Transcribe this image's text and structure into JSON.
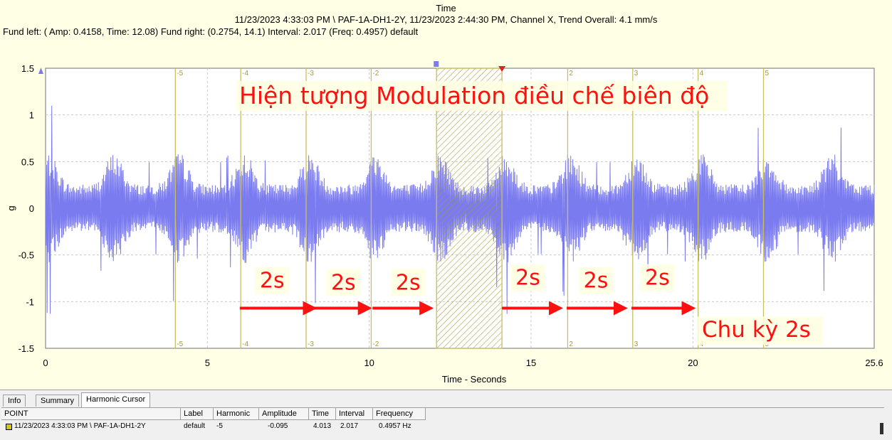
{
  "chart_data": {
    "type": "line",
    "title": "Time",
    "subtitle": "11/23/2023 4:33:03 PM \\ PAF-1A-DH1-2Y, 11/23/2023 2:44:30 PM, Channel X, Trend Overall: 4.1 mm/s",
    "info_line": "Fund left: ( Amp: 0.4158, Time: 12.08) Fund right: (0.2754, 14.1) Interval: 2.017 (Freq: 0.4957) default",
    "xlabel": "Time - Seconds",
    "ylabel": "g",
    "xlim": [
      0,
      25.6
    ],
    "ylim": [
      -1.5,
      1.5
    ],
    "x_ticks": [
      "0",
      "5",
      "10",
      "15",
      "20",
      "25.6"
    ],
    "y_ticks": [
      "1.5",
      "1",
      "0.5",
      "0",
      "-0.5",
      "-1",
      "-1.5"
    ],
    "grid": true,
    "series": [
      {
        "color": "#7b7bf0",
        "envelope_period_s": 2.017,
        "typical_peak_g": 0.6,
        "max_peak_g": 1.2
      }
    ],
    "harmonic_cursors": [
      {
        "label": "-5",
        "x": 4.01
      },
      {
        "label": "-4",
        "x": 6.03
      },
      {
        "label": "-3",
        "x": 8.05
      },
      {
        "label": "-2",
        "x": 10.06
      },
      {
        "label": "2",
        "x": 16.13
      },
      {
        "label": "3",
        "x": 18.14
      },
      {
        "label": "4",
        "x": 20.16
      },
      {
        "label": "5",
        "x": 22.18
      }
    ],
    "band": {
      "x0": 12.08,
      "x1": 14.1,
      "color": "#c8c060"
    },
    "annotations": {
      "main": "Hiện tượng Modulation điều chế biên độ",
      "cycle": "Chu kỳ 2s",
      "arrow_label": "2s",
      "color": "#ff1010"
    },
    "arrows": [
      {
        "from": 6.0,
        "to": 8.3,
        "label_x": 7.0,
        "label_y": -0.85
      },
      {
        "from": 8.1,
        "to": 10.0,
        "label_x": 9.2,
        "label_y": -0.87
      },
      {
        "from": 10.1,
        "to": 11.9,
        "label_x": 11.2,
        "label_y": -0.87
      },
      {
        "from": 14.1,
        "to": 15.9,
        "label_x": 14.9,
        "label_y": -0.82
      },
      {
        "from": 16.1,
        "to": 17.9,
        "label_x": 17.0,
        "label_y": -0.85
      },
      {
        "from": 18.1,
        "to": 20.0,
        "label_x": 18.9,
        "label_y": -0.82
      }
    ]
  },
  "tabs": [
    "Info",
    "Summary",
    "Harmonic Cursor"
  ],
  "table": {
    "headers": [
      "POINT",
      "Label",
      "Harmonic",
      "Amplitude",
      "Time",
      "Interval",
      "Frequency"
    ],
    "row": [
      "11/23/2023 4:33:03 PM \\ PAF-1A-DH1-2Y",
      "default",
      "-5",
      "-0.095",
      "4.013",
      "2.017",
      "0.4957 Hz"
    ],
    "row_marker_color": "#d4c800"
  }
}
